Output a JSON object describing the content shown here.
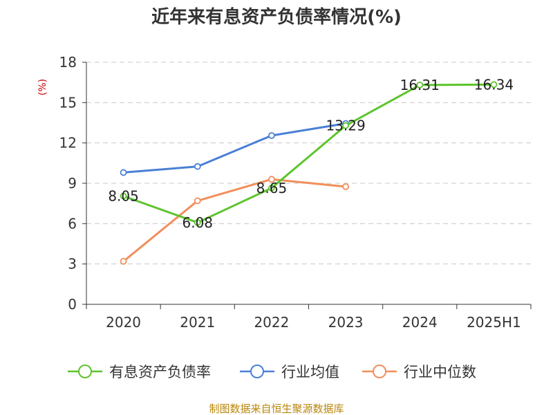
{
  "chart_data": {
    "type": "line",
    "title": "近年来有息资产负债率情况(%)",
    "ylabel": "(%)",
    "xlabel": "",
    "categories": [
      "2020",
      "2021",
      "2022",
      "2023",
      "2024",
      "2025H1"
    ],
    "ylim": [
      0,
      18
    ],
    "yticks": [
      0,
      3,
      6,
      9,
      12,
      15,
      18
    ],
    "grid": true,
    "legend_position": "bottom",
    "series": [
      {
        "name": "有息资产负债率",
        "color": "#5cc42b",
        "values": [
          8.05,
          6.08,
          8.65,
          13.29,
          16.31,
          16.34
        ],
        "labels": [
          "8.05",
          "6.08",
          "8.65",
          "13.29",
          "16.31",
          "16.34"
        ]
      },
      {
        "name": "行业均值",
        "color": "#4a7fd6",
        "values": [
          9.8,
          10.25,
          12.55,
          13.45,
          null,
          null
        ]
      },
      {
        "name": "行业中位数",
        "color": "#f28e5b",
        "values": [
          3.2,
          7.7,
          9.3,
          8.75,
          null,
          null
        ]
      }
    ],
    "source": "制图数据来自恒生聚源数据库"
  }
}
